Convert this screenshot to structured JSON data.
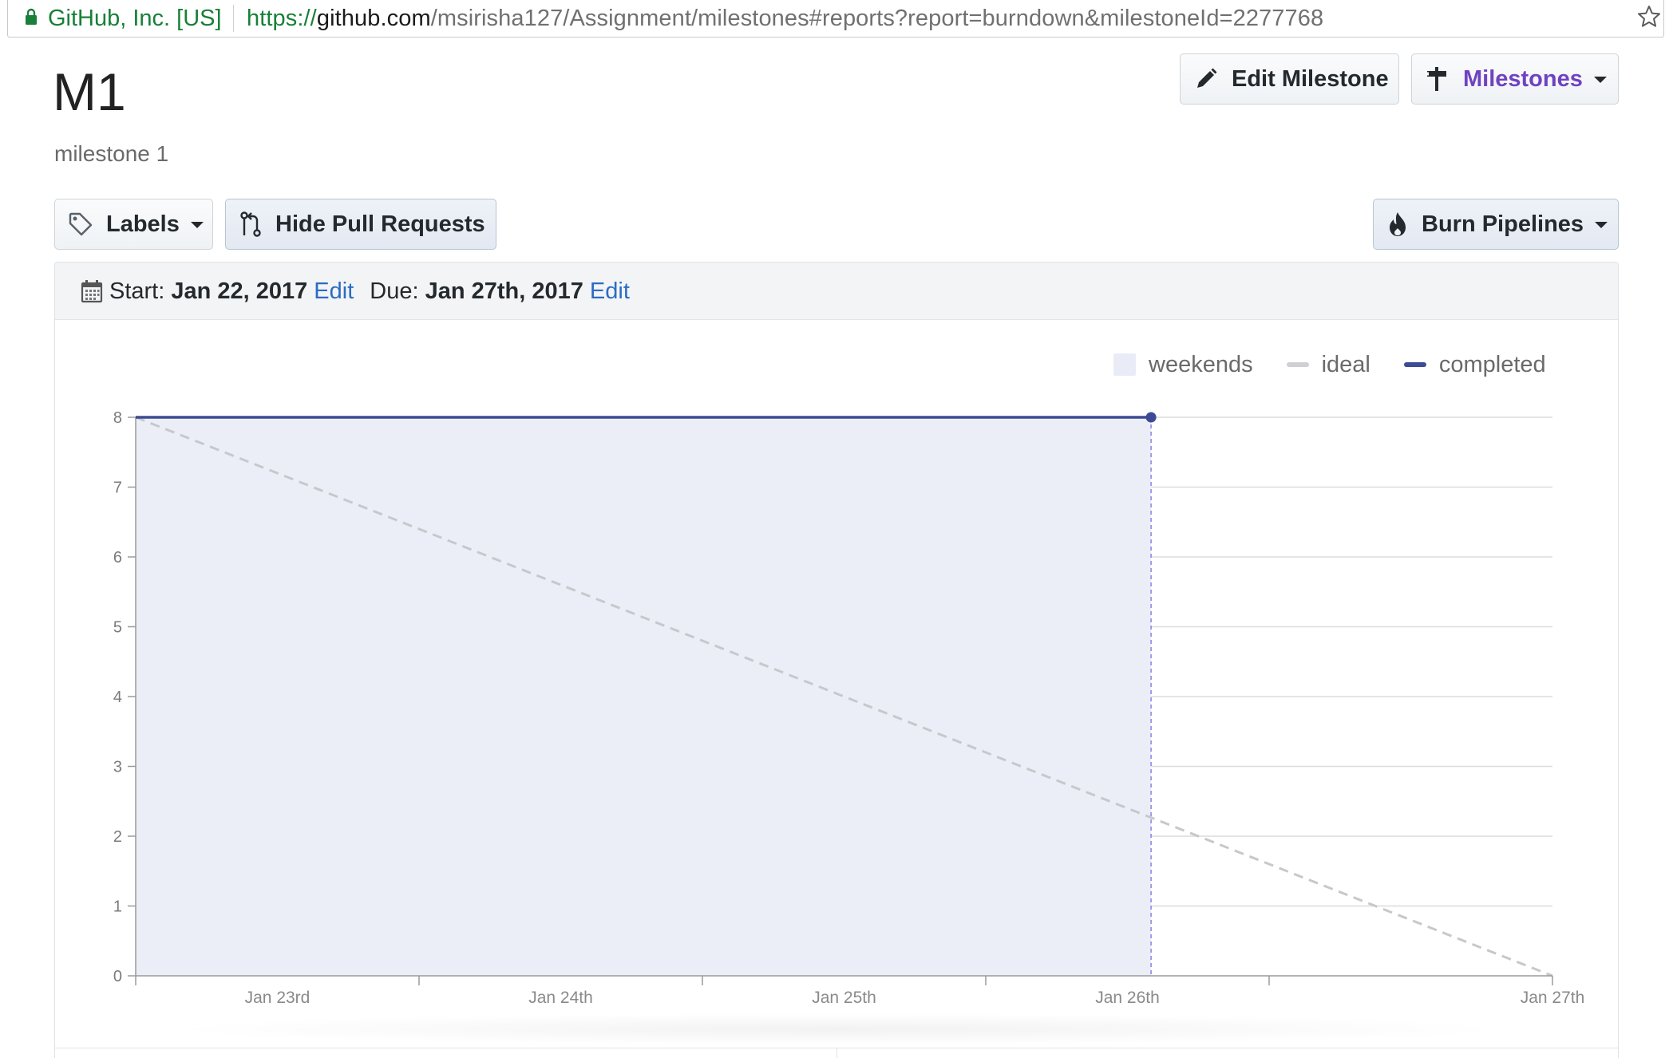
{
  "browser": {
    "site_identity": "GitHub, Inc. [US]",
    "url_scheme": "https://",
    "url_host": "github.com",
    "url_path": "/msirisha127/Assignment/milestones#reports?report=burndown&milestoneId=2277768"
  },
  "header": {
    "title": "M1",
    "subtitle": "milestone 1",
    "edit_milestone_label": "Edit Milestone",
    "milestones_label": "Milestones"
  },
  "toolbar": {
    "labels_label": "Labels",
    "hide_prs_label": "Hide Pull Requests",
    "burn_pipelines_label": "Burn Pipelines"
  },
  "report": {
    "start_label": "Start:",
    "start_date": "Jan 22, 2017",
    "start_edit": "Edit",
    "due_label": "Due:",
    "due_date": "Jan 27th, 2017",
    "due_edit": "Edit"
  },
  "colors": {
    "accent": "#6f42c1",
    "link": "#2b6cc4",
    "completed": "#3d4a94",
    "ideal": "#c8c8cc",
    "area_fill": "#eceef7",
    "site_green": "#188038"
  },
  "icons": {
    "lock": "lock-icon",
    "star": "star-icon",
    "edit": "pencil-icon",
    "milestone": "milestone-icon",
    "labels": "tag-icon",
    "pull_request": "pull-request-icon",
    "burn": "flame-icon",
    "calendar": "calendar-icon"
  },
  "chart_data": {
    "type": "line",
    "title": "",
    "xlabel": "",
    "ylabel": "",
    "x_start": "Jan 22",
    "x_end": "Jan 27th",
    "x_tick_labels": [
      "Jan 23rd",
      "Jan 24th",
      "Jan 25th",
      "Jan 26th",
      "Jan 27th"
    ],
    "x_tick_dates": [
      "2017-01-23",
      "2017-01-24",
      "2017-01-25",
      "2017-01-26",
      "2017-01-27"
    ],
    "ylim": [
      0,
      8
    ],
    "y_ticks": [
      0,
      1,
      2,
      3,
      4,
      5,
      6,
      7,
      8
    ],
    "grid": true,
    "legend_position": "top-right",
    "legend": [
      "weekends",
      "ideal",
      "completed"
    ],
    "series": [
      {
        "name": "ideal",
        "style": "dashed",
        "color": "#c8c8cc",
        "points": [
          [
            "2017-01-22",
            8
          ],
          [
            "2017-01-27",
            0
          ]
        ]
      },
      {
        "name": "completed",
        "style": "solid",
        "color": "#3d4a94",
        "points": [
          [
            "2017-01-22",
            8
          ],
          [
            "2017-01-25 14:00",
            8
          ]
        ]
      }
    ]
  }
}
